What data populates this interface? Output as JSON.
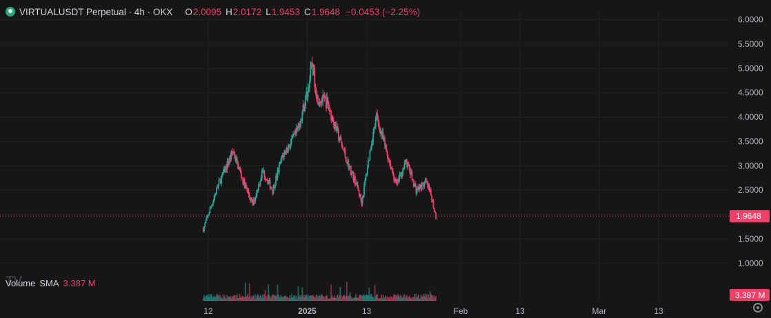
{
  "header": {
    "symbol": "VIRTUALUSDT Perpetual · 4h · OKX",
    "o_label": "O",
    "o_value": "2.0095",
    "h_label": "H",
    "h_value": "2.0172",
    "l_label": "L",
    "l_value": "1.9453",
    "c_label": "C",
    "c_value": "1.9648",
    "change": "−0.0453 (−2.25%)"
  },
  "volume": {
    "label": "Volume",
    "sma_label": "SMA",
    "value": "3.387 M"
  },
  "logo_text": "TV",
  "colors": {
    "up": "#26a69a",
    "down": "#f23f6a",
    "background": "#161616",
    "grid": "#222222"
  },
  "chart_data": {
    "type": "candlestick",
    "y_axis": {
      "range": [
        0.75,
        6.15
      ],
      "ticks": [
        "6.0000",
        "5.5000",
        "5.0000",
        "4.5000",
        "4.0000",
        "3.5000",
        "3.0000",
        "2.5000",
        "1.5000",
        "1.0000"
      ],
      "last_price_label": "1.9648"
    },
    "volume_axis_label": "3.387 M",
    "x_ticks": [
      {
        "label": "12",
        "bold": false
      },
      {
        "label": "2025",
        "bold": true
      },
      {
        "label": "13",
        "bold": false
      },
      {
        "label": "Feb",
        "bold": false
      },
      {
        "label": "13",
        "bold": false
      },
      {
        "label": "Mar",
        "bold": false
      },
      {
        "label": "13",
        "bold": false
      }
    ],
    "x_tick_dates": [
      "2024-12-12",
      "2025-01-01",
      "2025-01-13",
      "2025-02-01",
      "2025-02-13",
      "2025-03-01",
      "2025-03-13"
    ],
    "series_start": "2024-12-11",
    "candle_interval_hours": 4,
    "close_path": [
      [
        "2024-12-11",
        1.7
      ],
      [
        "2024-12-14",
        2.6
      ],
      [
        "2024-12-17",
        3.3
      ],
      [
        "2024-12-19",
        2.7
      ],
      [
        "2024-12-21",
        2.2
      ],
      [
        "2024-12-23",
        2.9
      ],
      [
        "2024-12-25",
        2.5
      ],
      [
        "2024-12-27",
        3.2
      ],
      [
        "2024-12-30",
        3.7
      ],
      [
        "2025-01-01",
        4.5
      ],
      [
        "2025-01-02",
        5.1
      ],
      [
        "2025-01-03",
        4.4
      ],
      [
        "2025-01-05",
        4.3
      ],
      [
        "2025-01-07",
        3.7
      ],
      [
        "2025-01-09",
        3.1
      ],
      [
        "2025-01-11",
        2.6
      ],
      [
        "2025-01-12",
        2.25
      ],
      [
        "2025-01-14",
        3.5
      ],
      [
        "2025-01-15",
        4.0
      ],
      [
        "2025-01-17",
        3.3
      ],
      [
        "2025-01-19",
        2.6
      ],
      [
        "2025-01-21",
        3.1
      ],
      [
        "2025-01-23",
        2.5
      ],
      [
        "2025-01-25",
        2.65
      ],
      [
        "2025-01-26",
        2.4
      ],
      [
        "2025-01-27",
        1.95
      ]
    ]
  }
}
